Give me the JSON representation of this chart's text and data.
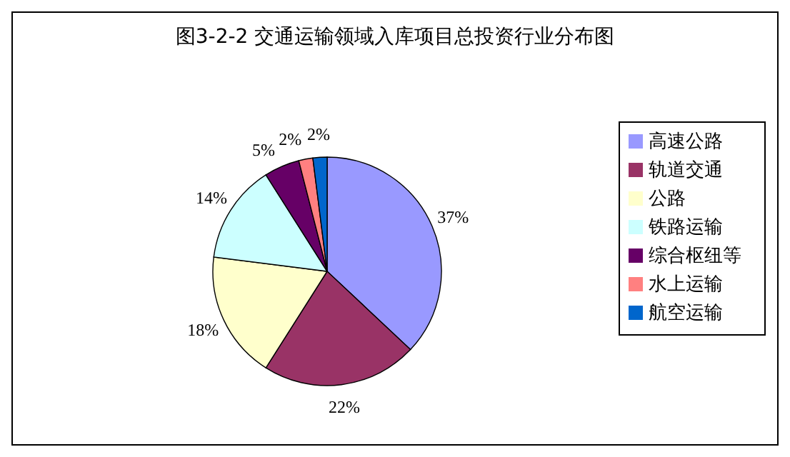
{
  "chart_data": {
    "type": "pie",
    "title": "图3-2-2 交通运输领域入库项目总投资行业分布图",
    "categories": [
      "高速公路",
      "轨道交通",
      "公路",
      "铁路运输",
      "综合枢纽等",
      "水上运输",
      "航空运输"
    ],
    "values": [
      37,
      22,
      18,
      14,
      5,
      2,
      2
    ],
    "value_labels": [
      "37%",
      "22%",
      "18%",
      "14%",
      "5%",
      "2%",
      "2%"
    ],
    "colors": [
      "#9999ff",
      "#993366",
      "#ffffcc",
      "#ccffff",
      "#660066",
      "#ff8080",
      "#0066cc"
    ],
    "legend": "right"
  }
}
